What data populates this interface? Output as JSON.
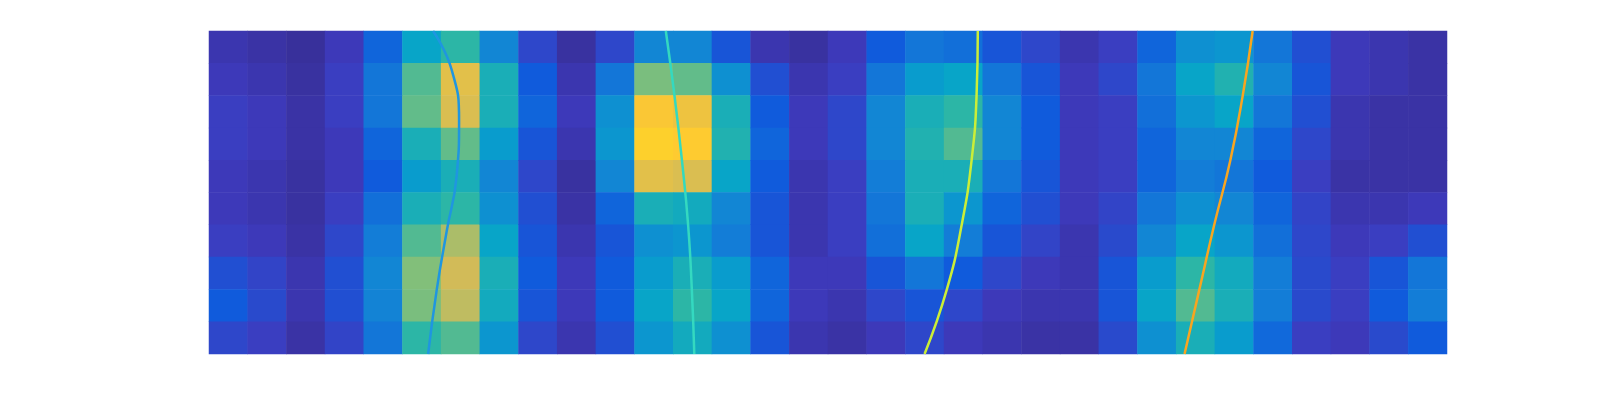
{
  "chart_data": {
    "type": "heatmap",
    "tick_labels": false,
    "xlim": [
      0,
      1
    ],
    "ylim": [
      0,
      1
    ],
    "color_range": [
      0,
      1
    ],
    "cells": [
      [
        0.08,
        0.1,
        0.12,
        0.12,
        0.1,
        0.1,
        0.12,
        0.18,
        0.22,
        0.15
      ],
      [
        0.06,
        0.08,
        0.1,
        0.1,
        0.08,
        0.08,
        0.1,
        0.14,
        0.16,
        0.12
      ],
      [
        0.04,
        0.05,
        0.06,
        0.06,
        0.05,
        0.05,
        0.06,
        0.08,
        0.08,
        0.06
      ],
      [
        0.1,
        0.12,
        0.12,
        0.1,
        0.1,
        0.12,
        0.15,
        0.18,
        0.18,
        0.14
      ],
      [
        0.25,
        0.3,
        0.3,
        0.25,
        0.22,
        0.28,
        0.32,
        0.35,
        0.34,
        0.3
      ],
      [
        0.45,
        0.6,
        0.62,
        0.5,
        0.42,
        0.5,
        0.6,
        0.66,
        0.65,
        0.55
      ],
      [
        0.55,
        0.82,
        0.8,
        0.62,
        0.5,
        0.55,
        0.72,
        0.78,
        0.75,
        0.6
      ],
      [
        0.35,
        0.5,
        0.5,
        0.42,
        0.35,
        0.38,
        0.45,
        0.5,
        0.48,
        0.4
      ],
      [
        0.15,
        0.22,
        0.25,
        0.2,
        0.15,
        0.18,
        0.2,
        0.22,
        0.2,
        0.15
      ],
      [
        0.05,
        0.08,
        0.1,
        0.08,
        0.05,
        0.06,
        0.08,
        0.1,
        0.1,
        0.08
      ],
      [
        0.15,
        0.3,
        0.38,
        0.4,
        0.35,
        0.25,
        0.2,
        0.22,
        0.22,
        0.18
      ],
      [
        0.35,
        0.65,
        0.88,
        0.92,
        0.82,
        0.5,
        0.38,
        0.42,
        0.45,
        0.4
      ],
      [
        0.35,
        0.62,
        0.85,
        0.9,
        0.8,
        0.48,
        0.4,
        0.5,
        0.55,
        0.48
      ],
      [
        0.2,
        0.38,
        0.5,
        0.52,
        0.45,
        0.35,
        0.32,
        0.42,
        0.45,
        0.38
      ],
      [
        0.08,
        0.18,
        0.22,
        0.25,
        0.22,
        0.2,
        0.2,
        0.25,
        0.25,
        0.2
      ],
      [
        0.05,
        0.08,
        0.1,
        0.1,
        0.08,
        0.08,
        0.08,
        0.1,
        0.1,
        0.08
      ],
      [
        0.1,
        0.12,
        0.15,
        0.15,
        0.12,
        0.12,
        0.12,
        0.1,
        0.08,
        0.06
      ],
      [
        0.22,
        0.3,
        0.35,
        0.35,
        0.32,
        0.3,
        0.28,
        0.2,
        0.15,
        0.1
      ],
      [
        0.3,
        0.42,
        0.5,
        0.52,
        0.5,
        0.5,
        0.45,
        0.3,
        0.2,
        0.15
      ],
      [
        0.28,
        0.45,
        0.55,
        0.6,
        0.5,
        0.4,
        0.32,
        0.22,
        0.15,
        0.1
      ],
      [
        0.2,
        0.3,
        0.35,
        0.35,
        0.3,
        0.25,
        0.2,
        0.15,
        0.1,
        0.08
      ],
      [
        0.15,
        0.2,
        0.22,
        0.22,
        0.2,
        0.18,
        0.14,
        0.1,
        0.08,
        0.06
      ],
      [
        0.08,
        0.1,
        0.1,
        0.1,
        0.1,
        0.1,
        0.08,
        0.08,
        0.08,
        0.06
      ],
      [
        0.12,
        0.15,
        0.12,
        0.12,
        0.12,
        0.14,
        0.16,
        0.2,
        0.2,
        0.16
      ],
      [
        0.25,
        0.3,
        0.28,
        0.25,
        0.25,
        0.3,
        0.35,
        0.42,
        0.45,
        0.38
      ],
      [
        0.38,
        0.45,
        0.4,
        0.35,
        0.32,
        0.38,
        0.45,
        0.55,
        0.6,
        0.5
      ],
      [
        0.4,
        0.52,
        0.45,
        0.35,
        0.3,
        0.35,
        0.4,
        0.48,
        0.5,
        0.42
      ],
      [
        0.3,
        0.35,
        0.3,
        0.25,
        0.22,
        0.25,
        0.28,
        0.32,
        0.32,
        0.26
      ],
      [
        0.18,
        0.2,
        0.18,
        0.15,
        0.12,
        0.14,
        0.15,
        0.16,
        0.16,
        0.12
      ],
      [
        0.1,
        0.1,
        0.08,
        0.08,
        0.06,
        0.08,
        0.1,
        0.12,
        0.12,
        0.1
      ],
      [
        0.08,
        0.08,
        0.06,
        0.06,
        0.06,
        0.08,
        0.12,
        0.2,
        0.22,
        0.16
      ],
      [
        0.06,
        0.06,
        0.06,
        0.06,
        0.06,
        0.1,
        0.18,
        0.3,
        0.32,
        0.22
      ]
    ],
    "series": [
      {
        "type": "line",
        "color": "#1f96e0",
        "x": [
          0.181,
          0.196,
          0.202,
          0.2,
          0.192,
          0.184,
          0.177
        ],
        "values": [
          1.0,
          0.88,
          0.72,
          0.55,
          0.38,
          0.2,
          0.0
        ]
      },
      {
        "type": "line",
        "color": "#34d9c0",
        "x": [
          0.369,
          0.376,
          0.382,
          0.387,
          0.39,
          0.392
        ],
        "values": [
          1.0,
          0.8,
          0.6,
          0.4,
          0.2,
          0.0
        ]
      },
      {
        "type": "line",
        "color": "#cbee37",
        "x": [
          0.621,
          0.62,
          0.616,
          0.608,
          0.596,
          0.578
        ],
        "values": [
          1.0,
          0.8,
          0.6,
          0.4,
          0.2,
          0.0
        ]
      },
      {
        "type": "line",
        "color": "#f9a51f",
        "x": [
          0.843,
          0.835,
          0.825,
          0.812,
          0.8,
          0.788
        ],
        "values": [
          1.0,
          0.8,
          0.6,
          0.4,
          0.2,
          0.0
        ]
      }
    ]
  }
}
